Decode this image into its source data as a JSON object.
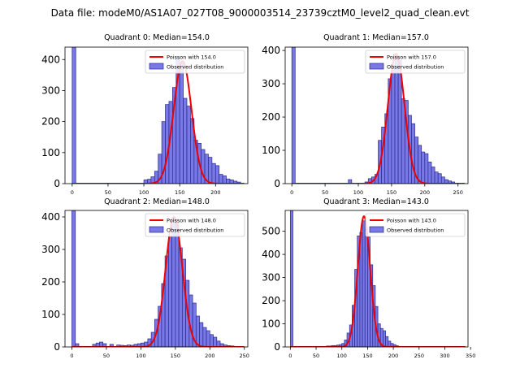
{
  "colors": {
    "bar_fill": "#7878e6",
    "bar_edge": "#2a2a8a",
    "poisson_line": "#ee0000"
  },
  "chart_data": {
    "type": "bar",
    "title": "Data file: modeM0/AS1A07_027T08_9000003514_23739cztM0_level2_quad_clean.evt",
    "panels": [
      {
        "title": "Quadrant 0: Median=154.0",
        "legend": {
          "line_label": "Poisson with 154.0",
          "bar_label": "Observed distribution",
          "position": "top-right"
        },
        "xlim": [
          -10,
          245
        ],
        "ylim": [
          0,
          440
        ],
        "xticks": [
          0,
          50,
          100,
          150,
          200
        ],
        "yticks": [
          0,
          100,
          200,
          300,
          400
        ],
        "bin_width": 5,
        "mean": 154,
        "peak": 395,
        "bins": [
          0,
          100,
          105,
          110,
          115,
          120,
          125,
          130,
          135,
          140,
          145,
          150,
          155,
          160,
          165,
          170,
          175,
          180,
          185,
          190,
          195,
          200,
          205,
          210,
          215,
          220,
          225,
          230
        ],
        "counts": [
          440,
          12,
          14,
          22,
          40,
          95,
          200,
          255,
          265,
          310,
          405,
          390,
          275,
          250,
          210,
          140,
          130,
          110,
          95,
          85,
          65,
          58,
          30,
          25,
          15,
          12,
          8,
          5
        ]
      },
      {
        "title": "Quadrant 1: Median=157.0",
        "legend": {
          "line_label": "Poisson with 157.0",
          "bar_label": "Observed distribution",
          "position": "top-right"
        },
        "xlim": [
          -10,
          265
        ],
        "ylim": [
          0,
          410
        ],
        "xticks": [
          0,
          50,
          100,
          150,
          200,
          250
        ],
        "yticks": [
          0,
          100,
          200,
          300,
          400
        ],
        "bin_width": 5,
        "mean": 157,
        "peak": 390,
        "bins": [
          0,
          85,
          110,
          115,
          120,
          125,
          130,
          135,
          140,
          145,
          150,
          155,
          160,
          165,
          170,
          175,
          180,
          185,
          190,
          195,
          200,
          205,
          210,
          215,
          220,
          225,
          230,
          235,
          240
        ],
        "counts": [
          410,
          12,
          5,
          15,
          20,
          28,
          130,
          170,
          210,
          315,
          355,
          385,
          370,
          255,
          250,
          205,
          180,
          140,
          115,
          95,
          90,
          65,
          50,
          35,
          30,
          20,
          12,
          8,
          5
        ]
      },
      {
        "title": "Quadrant 2: Median=148.0",
        "legend": {
          "line_label": "Poisson with 148.0",
          "bar_label": "Observed distribution",
          "position": "top-right"
        },
        "xlim": [
          -10,
          255
        ],
        "ylim": [
          0,
          420
        ],
        "xticks": [
          0,
          50,
          100,
          150,
          200,
          250
        ],
        "yticks": [
          0,
          100,
          200,
          300,
          400
        ],
        "bin_width": 5,
        "mean": 148,
        "peak": 400,
        "bins": [
          0,
          5,
          30,
          35,
          40,
          45,
          55,
          65,
          70,
          75,
          80,
          85,
          90,
          95,
          100,
          105,
          110,
          115,
          120,
          125,
          130,
          135,
          140,
          145,
          150,
          155,
          160,
          165,
          170,
          175,
          180,
          185,
          190,
          195,
          200,
          205,
          210,
          215,
          220,
          225,
          230
        ],
        "counts": [
          420,
          10,
          8,
          12,
          15,
          10,
          8,
          6,
          5,
          4,
          6,
          5,
          8,
          10,
          12,
          15,
          25,
          45,
          85,
          125,
          195,
          280,
          340,
          395,
          380,
          305,
          270,
          205,
          160,
          135,
          95,
          75,
          60,
          50,
          38,
          30,
          18,
          10,
          6,
          4,
          3
        ]
      },
      {
        "title": "Quadrant 3: Median=143.0",
        "legend": {
          "line_label": "Poisson with 143.0",
          "bar_label": "Observed distribution",
          "position": "top-right"
        },
        "xlim": [
          -10,
          345
        ],
        "ylim": [
          0,
          590
        ],
        "xticks": [
          0,
          50,
          100,
          150,
          200,
          250,
          300,
          350
        ],
        "yticks": [
          0,
          100,
          200,
          300,
          400,
          500
        ],
        "bin_width": 5,
        "mean": 143,
        "peak": 565,
        "bins": [
          0,
          70,
          75,
          80,
          85,
          90,
          95,
          100,
          105,
          110,
          115,
          120,
          125,
          130,
          135,
          140,
          145,
          150,
          155,
          160,
          165,
          170,
          175,
          180,
          185,
          190,
          195,
          200,
          205
        ],
        "counts": [
          590,
          4,
          4,
          6,
          6,
          8,
          10,
          15,
          30,
          60,
          95,
          180,
          335,
          480,
          495,
          545,
          515,
          475,
          355,
          265,
          175,
          100,
          80,
          70,
          45,
          25,
          15,
          10,
          5
        ]
      }
    ]
  }
}
